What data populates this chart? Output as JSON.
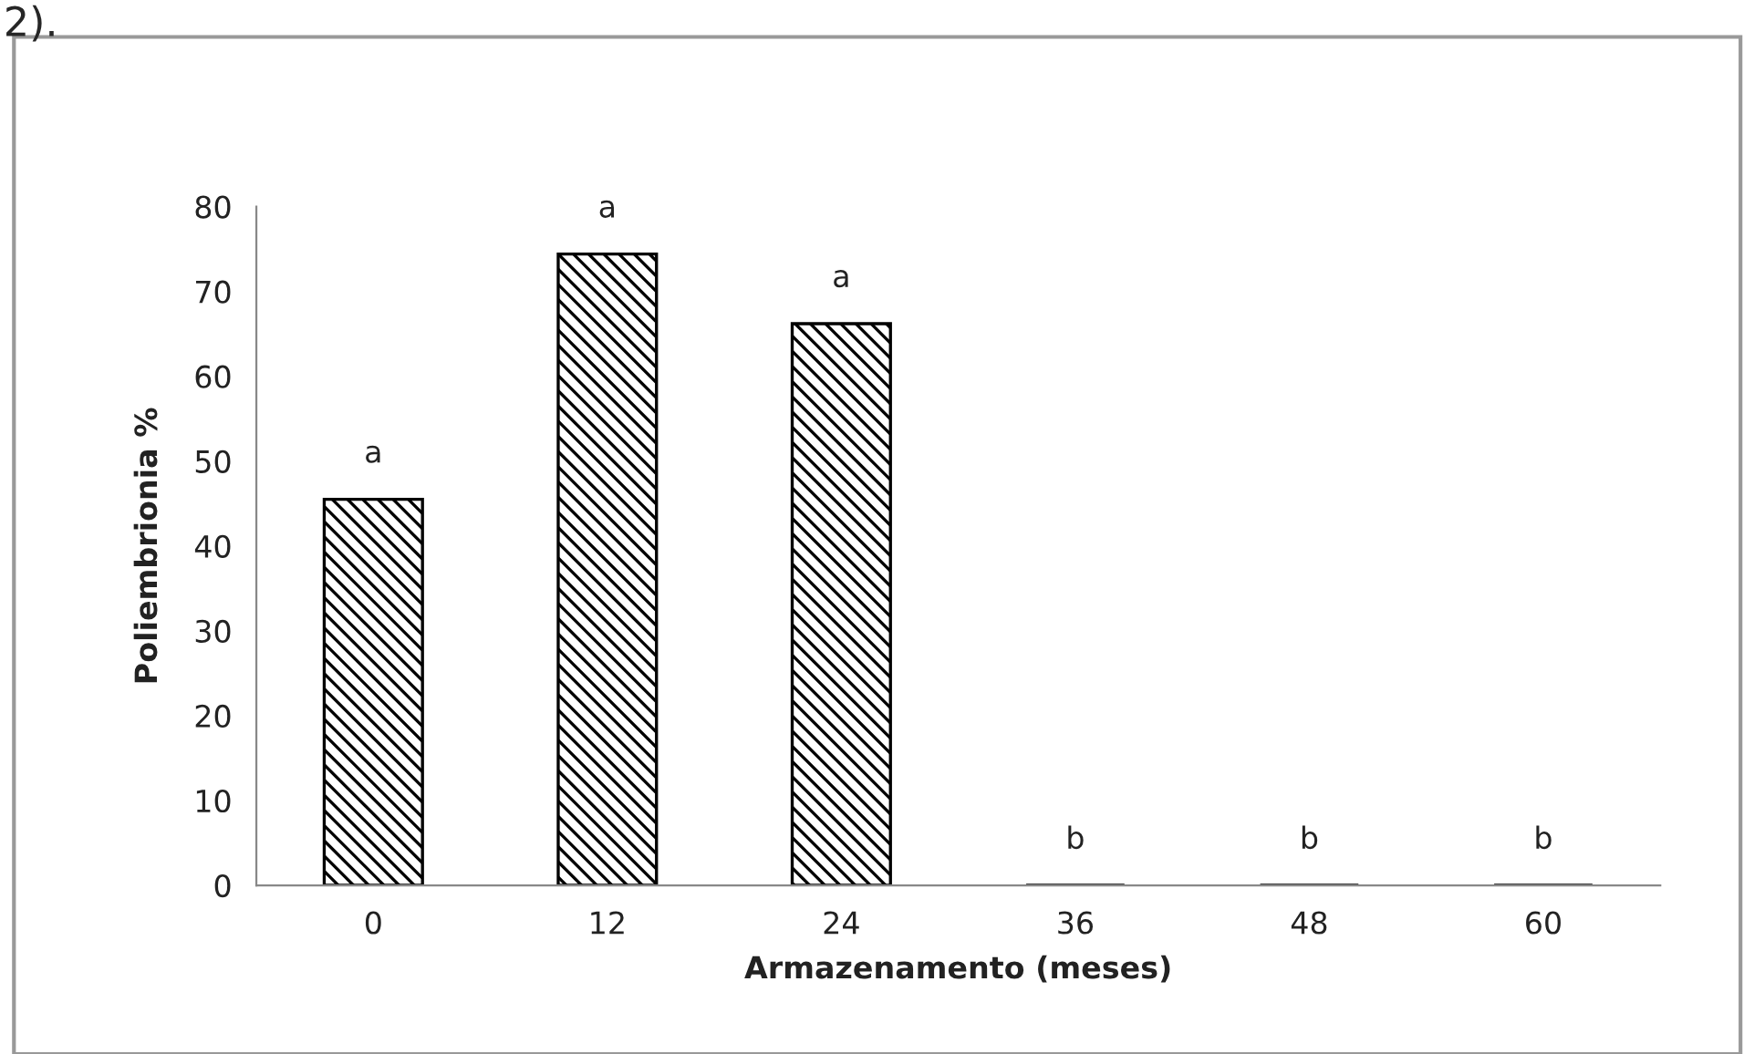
{
  "chart_data": {
    "type": "bar",
    "xlabel": "Armazenamento (meses)",
    "ylabel": "Poliembrionia %",
    "categories": [
      "0",
      "12",
      "24",
      "36",
      "48",
      "60"
    ],
    "values": [
      45.5,
      74.4,
      66.2,
      0,
      0,
      0
    ],
    "value_labels": [
      "a",
      "a",
      "a",
      "b",
      "b",
      "b"
    ],
    "color": "#000000",
    "ylim": [
      0,
      80
    ],
    "yticks": [
      0,
      10,
      20,
      30,
      40,
      50,
      60,
      70,
      80
    ],
    "grid": false,
    "legend": false,
    "annotations": [
      "2)."
    ]
  }
}
